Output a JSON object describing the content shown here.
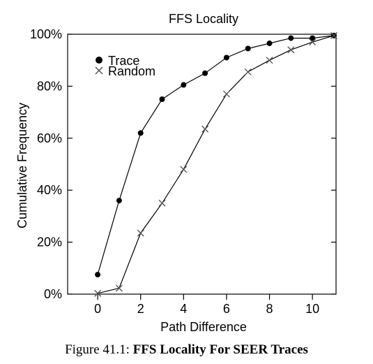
{
  "chart_data": {
    "type": "line",
    "title": "FFS Locality",
    "xlabel": "Path Difference",
    "ylabel": "Cumulative Frequency",
    "xlim": [
      -1.4,
      11.1
    ],
    "ylim": [
      0,
      100
    ],
    "xticks": [
      0,
      2,
      4,
      6,
      8,
      10
    ],
    "xtick_labels": [
      "0",
      "2",
      "4",
      "6",
      "8",
      "10"
    ],
    "yticks": [
      0,
      20,
      40,
      60,
      80,
      100
    ],
    "ytick_labels": [
      "0%",
      "20%",
      "40%",
      "60%",
      "80%",
      "100%"
    ],
    "grid": false,
    "legend_position": "top-left",
    "series": [
      {
        "name": "Trace",
        "marker": "filled-circle",
        "x": [
          0,
          1,
          2,
          3,
          4,
          5,
          6,
          7,
          8,
          9,
          10,
          11
        ],
        "y": [
          7.5,
          36,
          62,
          75,
          80.5,
          85,
          91,
          94.5,
          96.5,
          98.5,
          98.5,
          99.5
        ]
      },
      {
        "name": "Random",
        "marker": "x",
        "x": [
          0,
          1,
          2,
          3,
          4,
          5,
          6,
          7,
          8,
          9,
          10,
          11
        ],
        "y": [
          0.3,
          2.3,
          23.5,
          35,
          48,
          63.5,
          77,
          85.5,
          90,
          94,
          97,
          99.5
        ]
      }
    ]
  },
  "caption": {
    "label": "Figure 41.1:",
    "title": "FFS Locality For SEER Traces"
  },
  "colors": {
    "line": "#000000",
    "marker": "#000000",
    "random_marker": "#555555"
  }
}
